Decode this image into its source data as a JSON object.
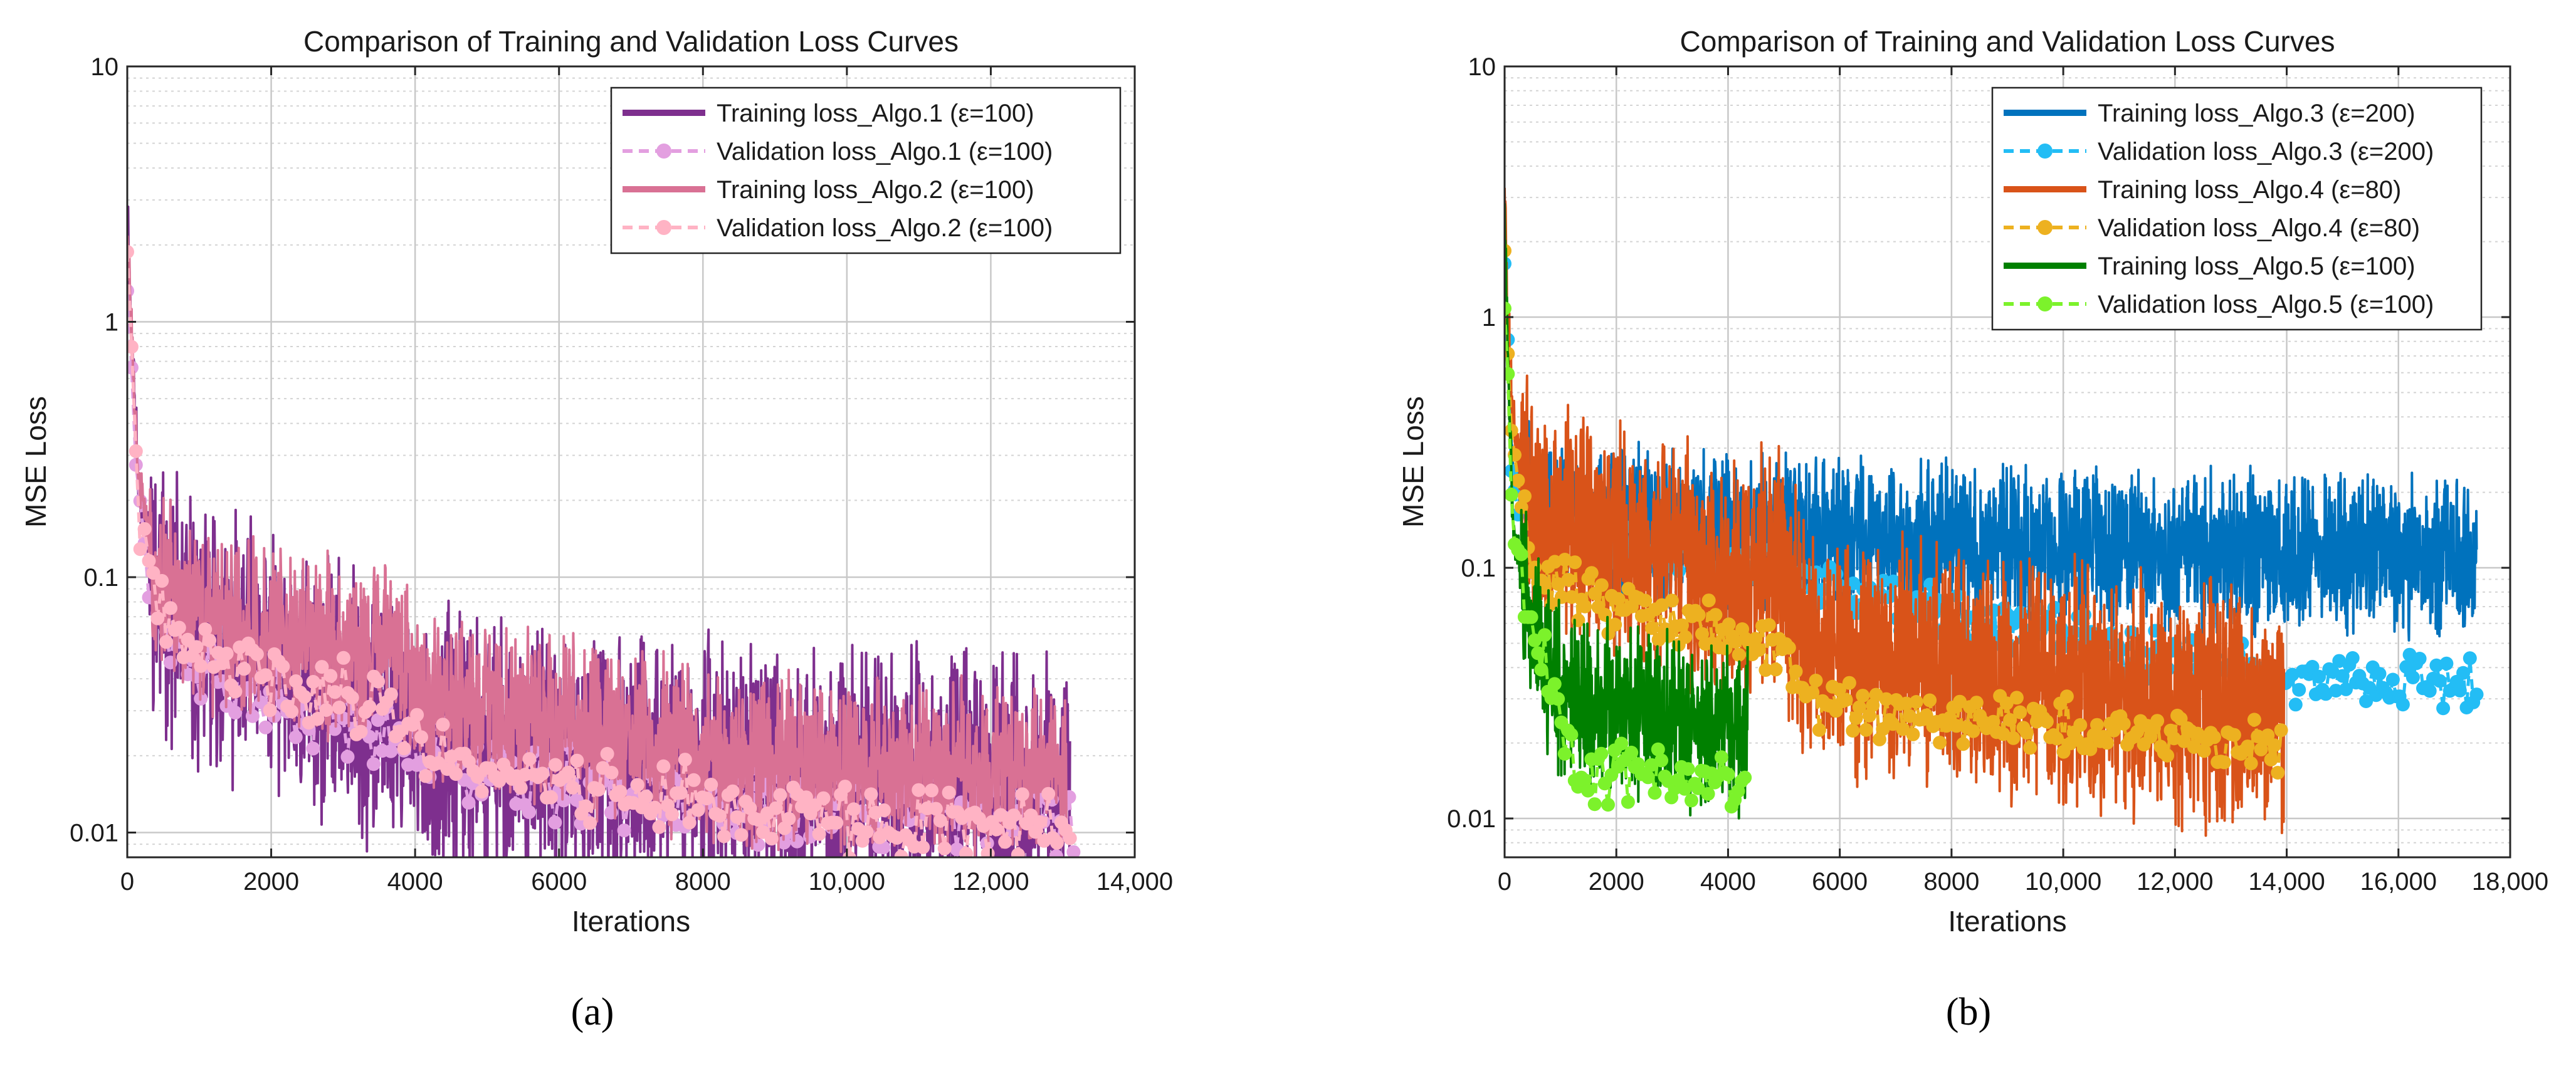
{
  "chart_data": [
    {
      "type": "line",
      "panel_label": "(a)",
      "title": "Comparison of Training and Validation Loss Curves",
      "xlabel": "Iterations",
      "ylabel": "MSE Loss",
      "xlim": [
        0,
        14000
      ],
      "ylim": [
        0.008,
        10
      ],
      "yscale": "log",
      "grid": true,
      "legend_position": "top-right",
      "x_ticks": [
        0,
        2000,
        4000,
        6000,
        8000,
        10000,
        12000,
        14000
      ],
      "x_tick_labels": [
        "0",
        "2000",
        "4000",
        "6000",
        "8000",
        "10,000",
        "12,000",
        "14,000"
      ],
      "y_ticks": [
        0.01,
        0.1,
        1,
        10
      ],
      "y_tick_labels": [
        "0.01",
        "0.1",
        "1",
        "10"
      ],
      "series": [
        {
          "name": "Training loss_Algo.1 (ε=100)",
          "kind": "train",
          "color": "#7e2f8e",
          "x_end": 13100,
          "anchors": [
            [
              0,
              2.9
            ],
            [
              50,
              1.0
            ],
            [
              150,
              0.25
            ],
            [
              400,
              0.09
            ],
            [
              1000,
              0.058
            ],
            [
              2000,
              0.045
            ],
            [
              2800,
              0.035
            ],
            [
              3800,
              0.027
            ],
            [
              4000,
              0.022
            ],
            [
              6000,
              0.019
            ],
            [
              8000,
              0.017
            ],
            [
              10000,
              0.016
            ],
            [
              13100,
              0.016
            ]
          ],
          "noise": 0.75,
          "seed": 11
        },
        {
          "name": "Validation loss_Algo.1 (ε=100)",
          "kind": "val",
          "color": "#e39fe0",
          "x_end": 13150,
          "anchors": [
            [
              0,
              1.7
            ],
            [
              50,
              0.9
            ],
            [
              150,
              0.2
            ],
            [
              400,
              0.07
            ],
            [
              1000,
              0.045
            ],
            [
              2000,
              0.033
            ],
            [
              3000,
              0.028
            ],
            [
              3800,
              0.025
            ],
            [
              4200,
              0.02
            ],
            [
              6000,
              0.016
            ],
            [
              8000,
              0.013
            ],
            [
              13150,
              0.012
            ]
          ],
          "noise": 0.22,
          "seed": 21
        },
        {
          "name": "Training loss_Algo.2 (ε=100)",
          "kind": "train",
          "color": "#d97194",
          "x_end": 13050,
          "anchors": [
            [
              0,
              2.5
            ],
            [
              50,
              1.0
            ],
            [
              150,
              0.25
            ],
            [
              400,
              0.1
            ],
            [
              1000,
              0.07
            ],
            [
              2000,
              0.06
            ],
            [
              3800,
              0.05
            ],
            [
              4000,
              0.035
            ],
            [
              6000,
              0.027
            ],
            [
              8000,
              0.02
            ],
            [
              10000,
              0.018
            ],
            [
              13050,
              0.017
            ]
          ],
          "noise": 0.5,
          "seed": 31
        },
        {
          "name": "Validation loss_Algo.2 (ε=100)",
          "kind": "val",
          "color": "#ffb3c4",
          "x_end": 13100,
          "anchors": [
            [
              0,
              1.7
            ],
            [
              50,
              0.9
            ],
            [
              150,
              0.2
            ],
            [
              400,
              0.07
            ],
            [
              1000,
              0.05
            ],
            [
              2000,
              0.04
            ],
            [
              3000,
              0.034
            ],
            [
              3800,
              0.03
            ],
            [
              4200,
              0.02
            ],
            [
              6000,
              0.016
            ],
            [
              8000,
              0.013
            ],
            [
              10000,
              0.011
            ],
            [
              13100,
              0.011
            ]
          ],
          "noise": 0.2,
          "seed": 41
        }
      ]
    },
    {
      "type": "line",
      "panel_label": "(b)",
      "title": "Comparison of Training and Validation Loss Curves",
      "xlabel": "Iterations",
      "ylabel": "MSE Loss",
      "xlim": [
        0,
        18000
      ],
      "ylim": [
        0.007,
        10
      ],
      "yscale": "log",
      "grid": true,
      "legend_position": "top-right",
      "x_ticks": [
        0,
        2000,
        4000,
        6000,
        8000,
        10000,
        12000,
        14000,
        16000,
        18000
      ],
      "x_tick_labels": [
        "0",
        "2000",
        "4000",
        "6000",
        "8000",
        "10,000",
        "12,000",
        "14,000",
        "16,000",
        "18,000"
      ],
      "y_ticks": [
        0.01,
        0.1,
        1,
        10
      ],
      "y_tick_labels": [
        "0.01",
        "0.1",
        "1",
        "10"
      ],
      "series": [
        {
          "name": "Training loss_Algo.3 (ε=200)",
          "kind": "train",
          "color": "#0072bd",
          "x_end": 17400,
          "anchors": [
            [
              0,
              2.5
            ],
            [
              50,
              0.8
            ],
            [
              150,
              0.25
            ],
            [
              500,
              0.17
            ],
            [
              2000,
              0.15
            ],
            [
              6000,
              0.13
            ],
            [
              10000,
              0.12
            ],
            [
              14000,
              0.115
            ],
            [
              17400,
              0.11
            ]
          ],
          "noise": 0.45,
          "seed": 51
        },
        {
          "name": "Validation loss_Algo.3 (ε=200)",
          "kind": "val",
          "color": "#23bdf5",
          "x_end": 17400,
          "anchors": [
            [
              0,
              1.6
            ],
            [
              50,
              0.8
            ],
            [
              150,
              0.2
            ],
            [
              500,
              0.14
            ],
            [
              14000,
              0.035
            ],
            [
              17400,
              0.036
            ]
          ],
          "noise": 0.15,
          "seed": 61
        },
        {
          "name": "Training loss_Algo.4 (ε=80)",
          "kind": "train",
          "color": "#d95319",
          "x_end": 13950,
          "anchors": [
            [
              0,
              3.3
            ],
            [
              50,
              1.0
            ],
            [
              150,
              0.4
            ],
            [
              500,
              0.16
            ],
            [
              2000,
              0.12
            ],
            [
              5000,
              0.09
            ],
            [
              5400,
              0.045
            ],
            [
              8000,
              0.04
            ],
            [
              12000,
              0.03
            ],
            [
              13950,
              0.025
            ]
          ],
          "noise": 0.7,
          "seed": 71
        },
        {
          "name": "Validation loss_Algo.4 (ε=80)",
          "kind": "val",
          "color": "#edb120",
          "x_end": 13900,
          "anchors": [
            [
              0,
              1.9
            ],
            [
              50,
              0.8
            ],
            [
              150,
              0.3
            ],
            [
              500,
              0.1
            ],
            [
              2000,
              0.068
            ],
            [
              4000,
              0.055
            ],
            [
              5000,
              0.045
            ],
            [
              5400,
              0.03
            ],
            [
              8000,
              0.025
            ],
            [
              11000,
              0.022
            ],
            [
              13900,
              0.019
            ]
          ],
          "noise": 0.15,
          "seed": 81
        },
        {
          "name": "Training loss_Algo.5 (ε=100)",
          "kind": "train",
          "color": "#008000",
          "x_end": 4350,
          "anchors": [
            [
              0,
              3.0
            ],
            [
              50,
              0.8
            ],
            [
              150,
              0.15
            ],
            [
              500,
              0.06
            ],
            [
              1000,
              0.03
            ],
            [
              4350,
              0.022
            ]
          ],
          "noise": 0.5,
          "seed": 91
        },
        {
          "name": "Validation loss_Algo.5 (ε=100)",
          "kind": "val",
          "color": "#7cf22b",
          "x_end": 4300,
          "anchors": [
            [
              0,
              1.2
            ],
            [
              50,
              0.6
            ],
            [
              150,
              0.13
            ],
            [
              500,
              0.06
            ],
            [
              1000,
              0.025
            ],
            [
              1500,
              0.015
            ],
            [
              4300,
              0.014
            ]
          ],
          "noise": 0.18,
          "seed": 101
        }
      ]
    }
  ]
}
